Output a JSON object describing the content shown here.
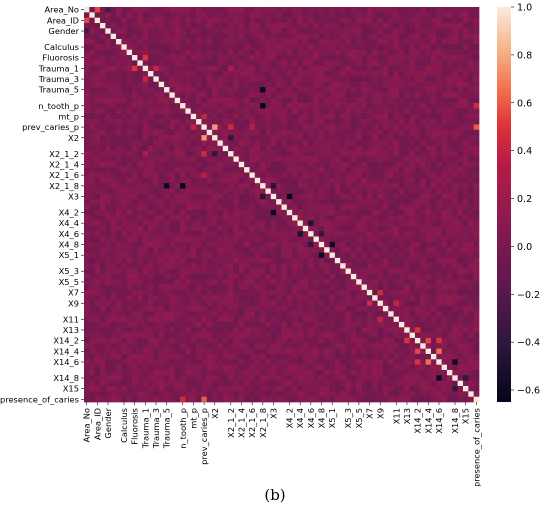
{
  "chart_data": {
    "type": "heatmap",
    "title": "",
    "xlabel": "",
    "ylabel": "",
    "variables": [
      "Area_No",
      "Area_ID",
      "Gender",
      "Calculus",
      "Fluorosis",
      "Trauma_1",
      "Trauma_3",
      "Trauma_5",
      "n_tooth_p",
      "mt_p",
      "prev_caries_p",
      "X2",
      "X2_1_2",
      "X2_1_4",
      "X2_1_6",
      "X2_1_8",
      "X3",
      "X4_2",
      "X4_4",
      "X4_6",
      "X4_8",
      "X5_1",
      "X5_3",
      "X5_5",
      "X7",
      "X9",
      "X11",
      "X13",
      "X14_2",
      "X14_4",
      "X14_6",
      "X14_8",
      "X15",
      "presence_of_caries"
    ],
    "y_tick_labels": [
      "Area_No",
      "Area_ID",
      "Gender",
      "Calculus",
      "Fluorosis",
      "Trauma_1",
      "Trauma_3",
      "Trauma_5",
      "n_tooth_p",
      "mt_p",
      "prev_caries_p",
      "X2",
      "X2_1_2",
      "X2_1_4",
      "X2_1_6",
      "X2_1_8",
      "X3",
      "X4_2",
      "X4_4",
      "X4_6",
      "X4_8",
      "X5_1",
      "X5_3",
      "X5_5",
      "X7",
      "X9",
      "X11",
      "X13",
      "X14_2",
      "X14_4",
      "X14_6",
      "X14_8",
      "X15",
      "presence_of_caries"
    ],
    "x_tick_labels": [
      "Area_No",
      "Area_ID",
      "Gender",
      "Calculus",
      "Fluorosis",
      "Trauma_1",
      "Trauma_3",
      "Trauma_5",
      "n_tooth_p",
      "mt_p",
      "prev_caries_p",
      "X2",
      "X2_1_2",
      "X2_1_4",
      "X2_1_6",
      "X2_1_8",
      "X3",
      "X4_2",
      "X4_4",
      "X4_6",
      "X4_8",
      "X5_1",
      "X5_3",
      "X5_5",
      "X7",
      "X9",
      "X11",
      "X13",
      "X14_2",
      "X14_4",
      "X14_6",
      "X14_8",
      "X15",
      "presence_of_caries"
    ],
    "notable_correlations": [
      {
        "a": "Area_No",
        "b": "Area_ID",
        "value": 0.55
      },
      {
        "a": "Area_No",
        "b": "Gender",
        "value": -0.25
      },
      {
        "a": "Fluorosis",
        "b": "Trauma_1",
        "value": 0.5
      },
      {
        "a": "Trauma_1",
        "b": "Trauma_3",
        "value": 0.4
      },
      {
        "a": "Trauma_1",
        "b": "X2_1_2",
        "value": 0.3
      },
      {
        "a": "n_tooth_p",
        "b": "X2_1_8",
        "value": -0.65
      },
      {
        "a": "mt_p",
        "b": "prev_caries_p",
        "value": 0.4
      },
      {
        "a": "prev_caries_p",
        "b": "X2",
        "value": 0.75
      },
      {
        "a": "prev_caries_p",
        "b": "X2_1_2",
        "value": 0.45
      },
      {
        "a": "prev_caries_p",
        "b": "X2_1_6",
        "value": 0.35
      },
      {
        "a": "prev_caries_p",
        "b": "presence_of_caries",
        "value": 0.6
      },
      {
        "a": "n_tooth_p",
        "b": "presence_of_caries",
        "value": 0.45
      },
      {
        "a": "X2_1_8",
        "b": "Trauma_5",
        "value": -0.6
      },
      {
        "a": "X2_1_8",
        "b": "X3",
        "value": -0.45
      },
      {
        "a": "X2",
        "b": "X2_1_2",
        "value": -0.4
      },
      {
        "a": "X3",
        "b": "X4_2",
        "value": -0.62
      },
      {
        "a": "X4_4",
        "b": "X4_6",
        "value": -0.5
      },
      {
        "a": "X4_6",
        "b": "X4_8",
        "value": -0.4
      },
      {
        "a": "X4_8",
        "b": "X5_1",
        "value": -0.6
      },
      {
        "a": "X7",
        "b": "X9",
        "value": 0.45
      },
      {
        "a": "X9",
        "b": "X11",
        "value": 0.4
      },
      {
        "a": "X13",
        "b": "X14_2",
        "value": 0.5
      },
      {
        "a": "X14_2",
        "b": "X14_4",
        "value": 0.55
      },
      {
        "a": "X14_2",
        "b": "X14_6",
        "value": 0.5
      },
      {
        "a": "X14_4",
        "b": "X14_6",
        "value": 0.65
      },
      {
        "a": "X14_6",
        "b": "X14_8",
        "value": -0.6
      },
      {
        "a": "X14_8",
        "b": "X15",
        "value": -0.4
      }
    ],
    "diagonal_value": 1.0,
    "vmin": -0.65,
    "vmax": 1.0,
    "colorbar_ticks": [
      1.0,
      0.8,
      0.6,
      0.4,
      0.2,
      0.0,
      -0.2,
      -0.4,
      -0.6
    ],
    "colorbar_labels": [
      "1.0",
      "0.8",
      "0.6",
      "0.4",
      "0.2",
      "0.0",
      "−0.2",
      "−0.4",
      "−0.6"
    ],
    "colormap": "rocket"
  },
  "caption": "(b)"
}
